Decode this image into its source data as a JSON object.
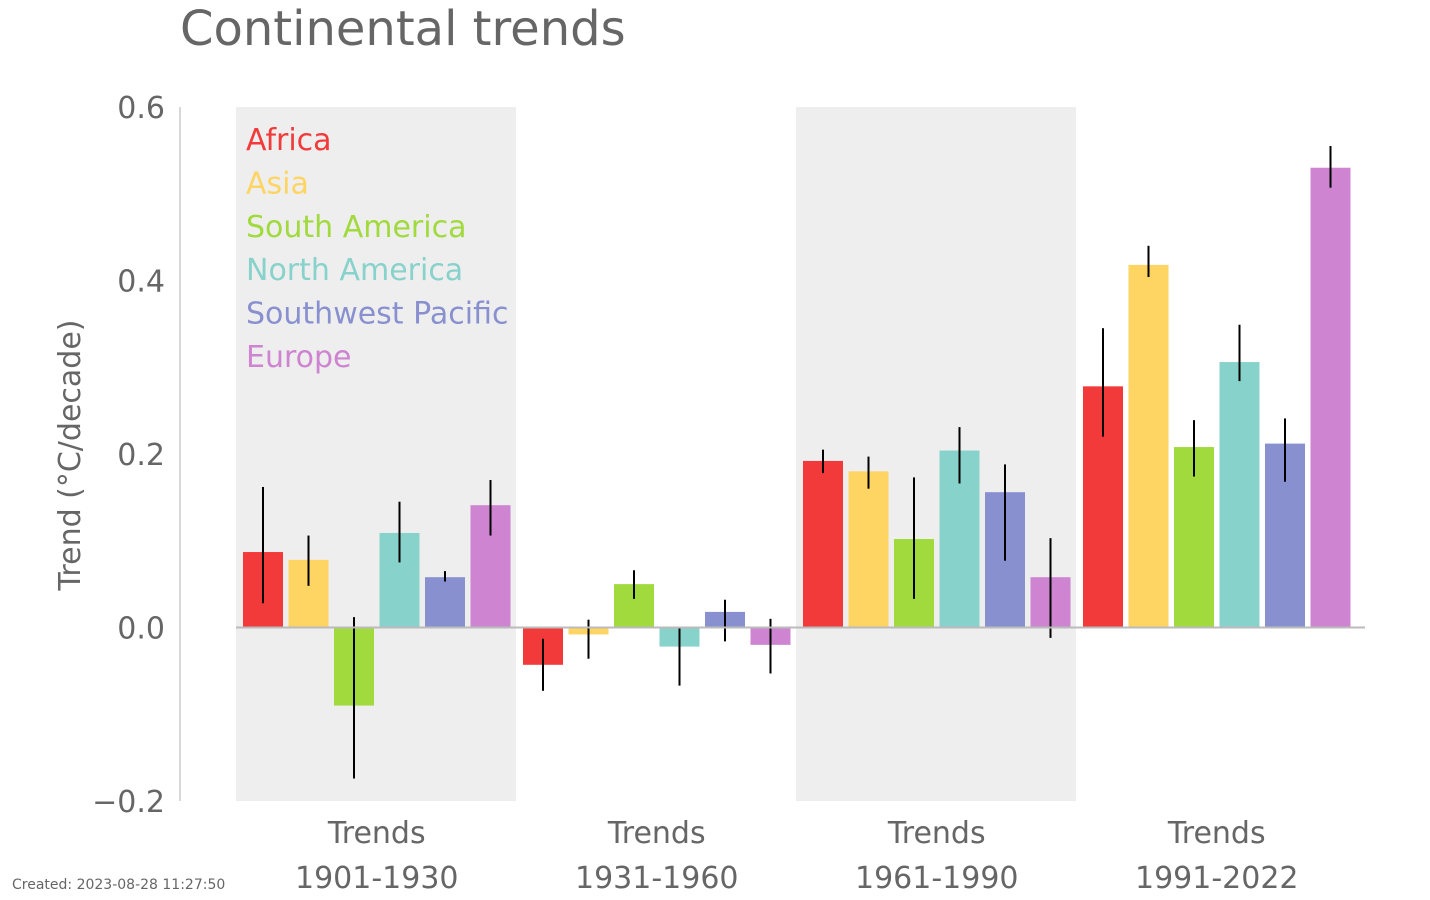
{
  "chart_data": {
    "type": "bar",
    "title": "Continental trends",
    "xlabel": "",
    "ylabel": "Trend (°C/decade)",
    "ylim": [
      -0.2,
      0.6
    ],
    "yticks": [
      "−0.2",
      "0.0",
      "0.2",
      "0.4",
      "0.6"
    ],
    "grid": false,
    "legend_placement": "top-left",
    "categories": [
      {
        "top": "Trends",
        "bottom": "1901-1930"
      },
      {
        "top": "Trends",
        "bottom": "1931-1960"
      },
      {
        "top": "Trends",
        "bottom": "1961-1990"
      },
      {
        "top": "Trends",
        "bottom": "1991-2022"
      }
    ],
    "shaded_groups": [
      0,
      2
    ],
    "series": [
      {
        "name": "Africa",
        "color": "#f33a3a",
        "values": [
          0.087,
          -0.043,
          0.192,
          0.278
        ],
        "error_low": [
          0.028,
          -0.073,
          0.178,
          0.22
        ],
        "error_high": [
          0.162,
          -0.013,
          0.205,
          0.345
        ]
      },
      {
        "name": "Asia",
        "color": "#fed462",
        "values": [
          0.078,
          -0.008,
          0.18,
          0.418
        ],
        "error_low": [
          0.048,
          -0.036,
          0.16,
          0.404
        ],
        "error_high": [
          0.106,
          0.009,
          0.197,
          0.44
        ]
      },
      {
        "name": "South America",
        "color": "#a0da3c",
        "values": [
          -0.09,
          0.05,
          0.102,
          0.208
        ],
        "error_low": [
          -0.174,
          0.033,
          0.033,
          0.174
        ],
        "error_high": [
          0.012,
          0.066,
          0.173,
          0.239
        ]
      },
      {
        "name": "North America",
        "color": "#88d2cc",
        "values": [
          0.109,
          -0.022,
          0.204,
          0.306
        ],
        "error_low": [
          0.075,
          -0.067,
          0.166,
          0.284
        ],
        "error_high": [
          0.145,
          0.0,
          0.231,
          0.349
        ]
      },
      {
        "name": "Southwest Pacific",
        "color": "#8890d0",
        "values": [
          0.058,
          0.018,
          0.156,
          0.212
        ],
        "error_low": [
          0.053,
          -0.016,
          0.077,
          0.168
        ],
        "error_high": [
          0.065,
          0.032,
          0.188,
          0.241
        ]
      },
      {
        "name": "Europe",
        "color": "#ce84d0",
        "values": [
          0.141,
          -0.02,
          0.058,
          0.53
        ],
        "error_low": [
          0.106,
          -0.053,
          -0.012,
          0.507
        ],
        "error_high": [
          0.17,
          0.01,
          0.103,
          0.555
        ]
      }
    ]
  },
  "footer": {
    "created": "Created: 2023-08-28 11:27:50"
  }
}
